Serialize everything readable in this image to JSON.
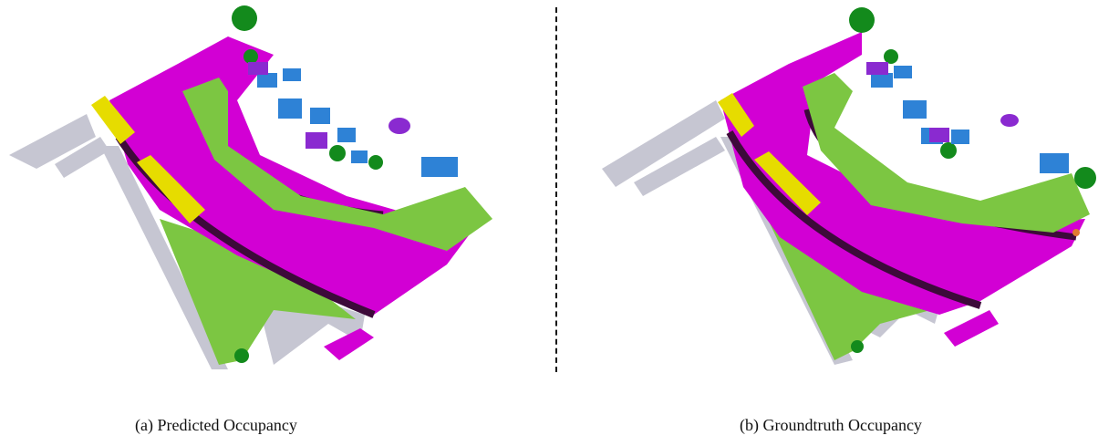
{
  "figure": {
    "left_caption": "(a) Predicted Occupancy",
    "right_caption": "(b) Groundtruth Occupancy"
  },
  "colors": {
    "driveable_surface": "#d200d4",
    "terrain": "#7cc642",
    "vegetation": "#138a1c",
    "manmade": "#c6c6d2",
    "car": "#2e82d6",
    "truck": "#8a2ad0",
    "bus": "#e6dc00",
    "sidewalk_curb": "#3d0a3a",
    "barrier": "#e07a30"
  }
}
